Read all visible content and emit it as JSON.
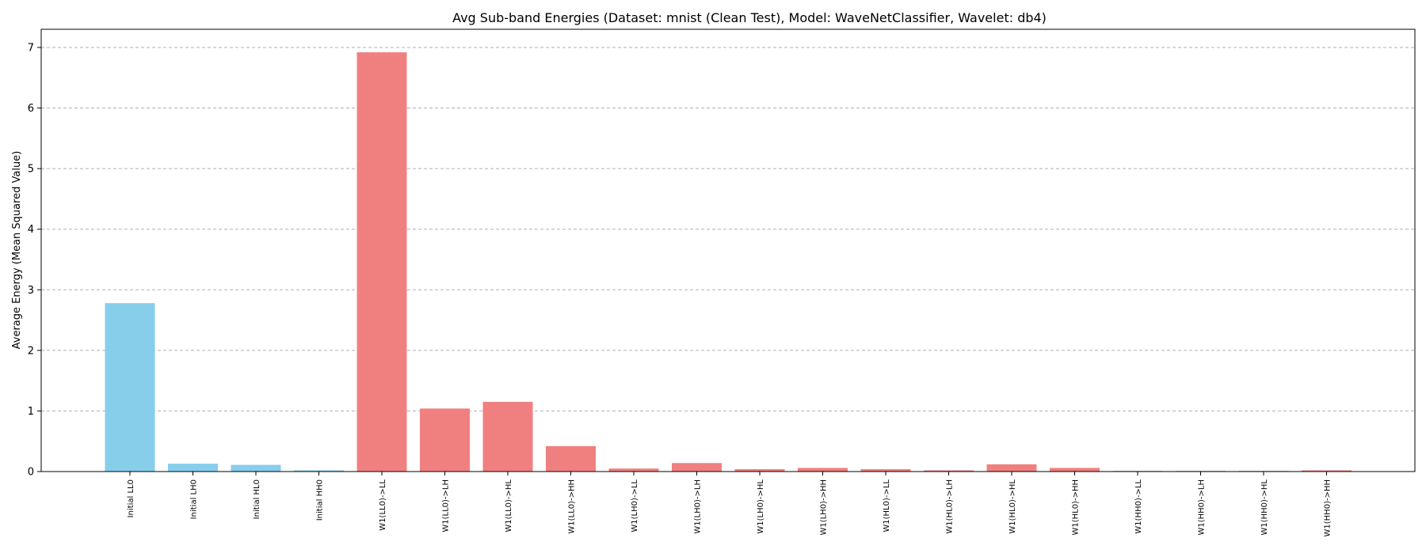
{
  "chart_data": {
    "type": "bar",
    "title": "Avg Sub-band Energies (Dataset: mnist (Clean Test), Model: WaveNetClassifier, Wavelet: db4)",
    "xlabel": "",
    "ylabel": "Average Energy (Mean Squared Value)",
    "ylim": [
      0,
      7.3
    ],
    "yticks": [
      "0",
      "1",
      "2",
      "3",
      "4",
      "5",
      "6",
      "7"
    ],
    "grid": "y-dashed",
    "categories": [
      "Initial LL0",
      "Initial LH0",
      "Initial HL0",
      "Initial HH0",
      "W1(LL0)->LL",
      "W1(LL0)->LH",
      "W1(LL0)->HL",
      "W1(LL0)->HH",
      "W1(LH0)->LL",
      "W1(LH0)->LH",
      "W1(LH0)->HL",
      "W1(LH0)->HH",
      "W1(HL0)->LL",
      "W1(HL0)->LH",
      "W1(HL0)->HL",
      "W1(HL0)->HH",
      "W1(HH0)->LL",
      "W1(HH0)->LH",
      "W1(HH0)->HL",
      "W1(HH0)->HH"
    ],
    "values": [
      2.78,
      0.13,
      0.11,
      0.02,
      6.92,
      1.04,
      1.15,
      0.42,
      0.05,
      0.14,
      0.04,
      0.06,
      0.04,
      0.02,
      0.12,
      0.06,
      0.01,
      0.01,
      0.01,
      0.02
    ],
    "colors": [
      "#87ceeb",
      "#87ceeb",
      "#87ceeb",
      "#87ceeb",
      "#f08080",
      "#f08080",
      "#f08080",
      "#f08080",
      "#f08080",
      "#f08080",
      "#f08080",
      "#f08080",
      "#f08080",
      "#f08080",
      "#f08080",
      "#f08080",
      "#f08080",
      "#f08080",
      "#f08080",
      "#f08080"
    ]
  }
}
